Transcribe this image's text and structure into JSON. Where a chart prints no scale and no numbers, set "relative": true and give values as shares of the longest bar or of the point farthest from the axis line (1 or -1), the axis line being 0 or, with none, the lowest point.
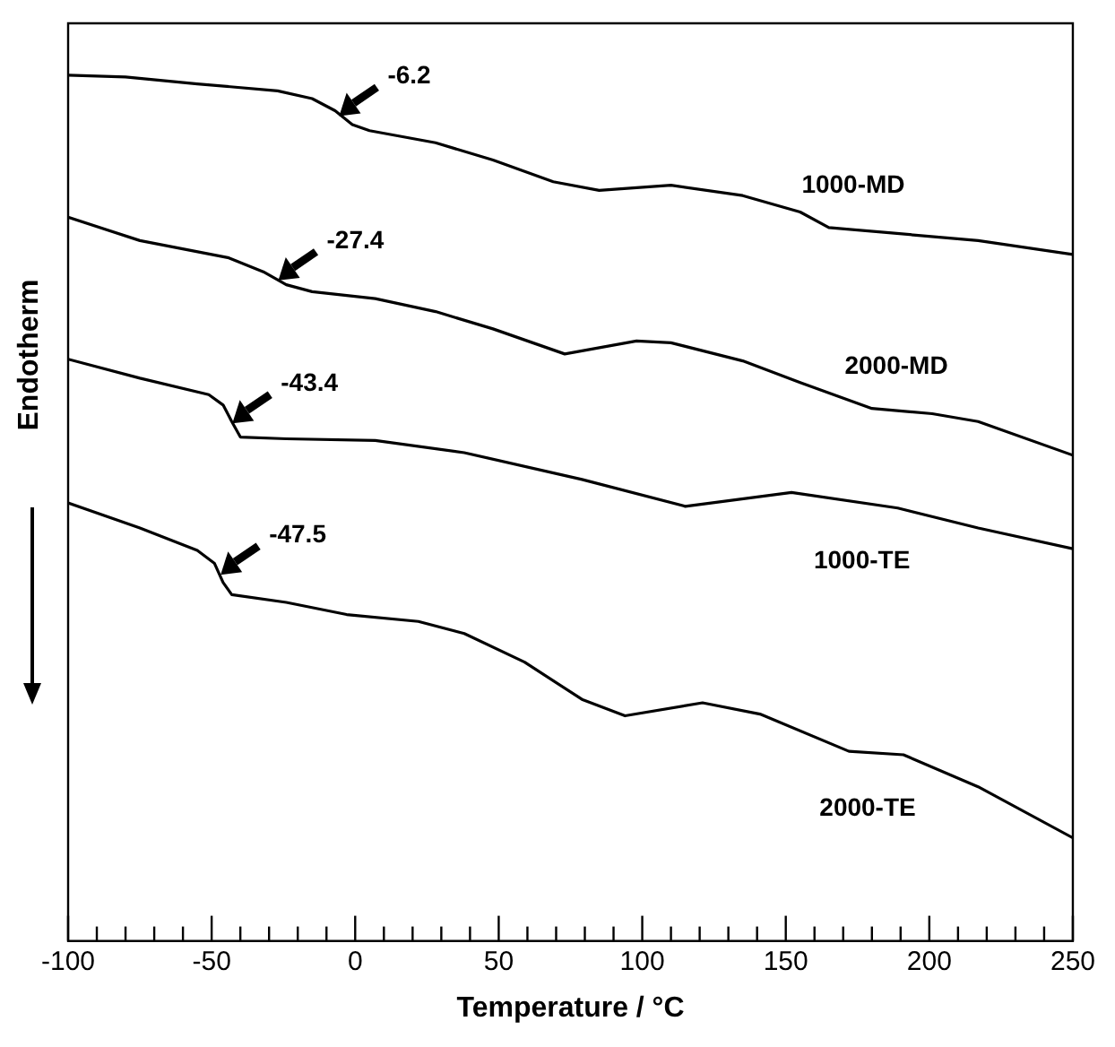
{
  "chart_data": {
    "type": "line",
    "relative": true,
    "xlabel": "Temperature / °C",
    "ylabel": "Endotherm",
    "xlim": [
      -100,
      250
    ],
    "xticks": [
      -100,
      {
        "value": -90,
        "label": null
      },
      {
        "value": -80,
        "label": null
      },
      {
        "value": -70,
        "label": null
      },
      {
        "value": -60,
        "label": null
      },
      -50,
      {
        "value": -40,
        "label": null
      },
      {
        "value": -30,
        "label": null
      },
      {
        "value": -20,
        "label": null
      },
      {
        "value": -10,
        "label": null
      },
      0,
      {
        "value": 10,
        "label": null
      },
      {
        "value": 20,
        "label": null
      },
      {
        "value": 30,
        "label": null
      },
      {
        "value": 40,
        "label": null
      },
      50,
      {
        "value": 60,
        "label": null
      },
      {
        "value": 70,
        "label": null
      },
      {
        "value": 80,
        "label": null
      },
      {
        "value": 90,
        "label": null
      },
      100,
      {
        "value": 110,
        "label": null
      },
      {
        "value": 120,
        "label": null
      },
      {
        "value": 130,
        "label": null
      },
      {
        "value": 140,
        "label": null
      },
      150,
      {
        "value": 160,
        "label": null
      },
      {
        "value": 170,
        "label": null
      },
      {
        "value": 180,
        "label": null
      },
      {
        "value": 190,
        "label": null
      },
      200,
      {
        "value": 210,
        "label": null
      },
      {
        "value": 220,
        "label": null
      },
      {
        "value": 230,
        "label": null
      },
      {
        "value": 240,
        "label": null
      },
      250
    ],
    "marker": "none",
    "line_style": "solid",
    "legend": false,
    "series": [
      {
        "name": "1000-MD",
        "color": "#000000",
        "x": [
          -100,
          -80,
          -55,
          -27,
          -15,
          -7,
          -1,
          5,
          28,
          48,
          69,
          85,
          110,
          135,
          155,
          165,
          186,
          217,
          250
        ],
        "values": [
          1.0,
          0.998,
          0.99,
          0.982,
          0.973,
          0.959,
          0.943,
          0.936,
          0.922,
          0.902,
          0.877,
          0.867,
          0.873,
          0.861,
          0.842,
          0.824,
          0.818,
          0.809,
          0.793
        ]
      },
      {
        "name": "2000-MD",
        "color": "#000000",
        "x": [
          -100,
          -75,
          -44,
          -32,
          -24,
          -15,
          7,
          28,
          48,
          73,
          98,
          110,
          135,
          155,
          180,
          201,
          217,
          250
        ],
        "values": [
          0.836,
          0.809,
          0.789,
          0.773,
          0.758,
          0.75,
          0.742,
          0.727,
          0.707,
          0.678,
          0.693,
          0.691,
          0.67,
          0.645,
          0.615,
          0.609,
          0.6,
          0.561
        ]
      },
      {
        "name": "1000-TE",
        "color": "#000000",
        "x": [
          -100,
          -75,
          -51,
          -46,
          -43,
          -40,
          -24,
          7,
          38,
          79,
          115,
          152,
          189,
          217,
          250
        ],
        "values": [
          0.672,
          0.65,
          0.631,
          0.619,
          0.6,
          0.582,
          0.58,
          0.578,
          0.564,
          0.533,
          0.502,
          0.518,
          0.5,
          0.477,
          0.453
        ]
      },
      {
        "name": "2000-TE",
        "color": "#000000",
        "x": [
          -100,
          -75,
          -55,
          -49,
          -46,
          -43,
          -24,
          -3,
          22,
          38,
          59,
          79,
          94,
          121,
          141,
          172,
          191,
          217,
          250
        ],
        "values": [
          0.506,
          0.477,
          0.451,
          0.436,
          0.414,
          0.4,
          0.391,
          0.377,
          0.369,
          0.355,
          0.322,
          0.279,
          0.26,
          0.275,
          0.262,
          0.219,
          0.215,
          0.178,
          0.119
        ]
      }
    ],
    "annotations": [
      {
        "text": "-6.2",
        "x": -6.2,
        "y": 0.955
      },
      {
        "text": "-27.4",
        "x": -27.4,
        "y": 0.765
      },
      {
        "text": "-43.4",
        "x": -43.4,
        "y": 0.6
      },
      {
        "text": "-47.5",
        "x": -47.5,
        "y": 0.425
      }
    ]
  }
}
